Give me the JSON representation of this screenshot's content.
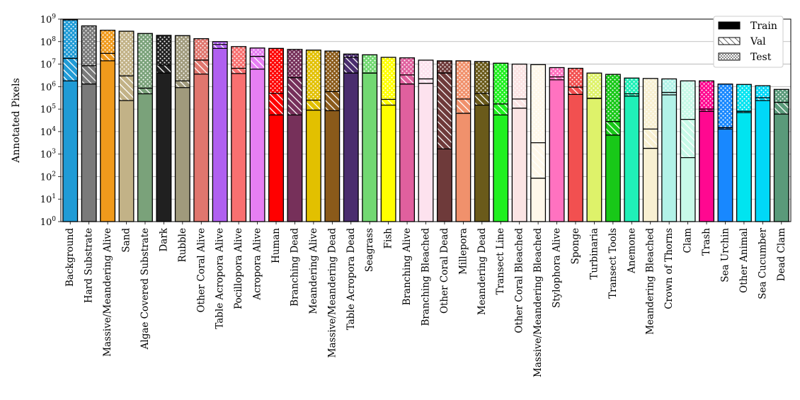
{
  "chart_data": {
    "type": "bar",
    "stacked": true,
    "yscale": "log",
    "ylabel": "Annotated Pixels",
    "xlabel": "",
    "title": "",
    "ylim": [
      1,
      1000000000
    ],
    "grid": "y",
    "legend": {
      "location": "top-right",
      "entries": [
        {
          "label": "Train",
          "style": "solid"
        },
        {
          "label": "Val",
          "style": "hatched"
        },
        {
          "label": "Test",
          "style": "dotted"
        }
      ]
    },
    "y_ticks": [
      {
        "base": "10",
        "exp": "0"
      },
      {
        "base": "10",
        "exp": "1"
      },
      {
        "base": "10",
        "exp": "2"
      },
      {
        "base": "10",
        "exp": "3"
      },
      {
        "base": "10",
        "exp": "4"
      },
      {
        "base": "10",
        "exp": "5"
      },
      {
        "base": "10",
        "exp": "6"
      },
      {
        "base": "10",
        "exp": "7"
      },
      {
        "base": "10",
        "exp": "8"
      },
      {
        "base": "10",
        "exp": "9"
      }
    ],
    "categories": [
      "Background",
      "Hard Substrate",
      "Massive/Meandering Alive",
      "Sand",
      "Algae Covered Substrate",
      "Dark",
      "Rubble",
      "Other Coral Alive",
      "Table Acropora Alive",
      "Pocillopora Alive",
      "Acropora Alive",
      "Human",
      "Branching Dead",
      "Meandering Alive",
      "Massive/Meandering Dead",
      "Table Acropora Dead",
      "Seagrass",
      "Fish",
      "Branching Alive",
      "Branching Bleached",
      "Other Coral Dead",
      "Millepora",
      "Meandering Dead",
      "Transect Line",
      "Other Coral Bleached",
      "Massive/Meandering Bleached",
      "Stylophora Alive",
      "Sponge",
      "Turbinaria",
      "Transect Tools",
      "Anemone",
      "Meandering Bleached",
      "Crown of Thorns",
      "Clam",
      "Trash",
      "Sea Urchin",
      "Other Animal",
      "Sea Cucumber",
      "Dead Clam"
    ],
    "colors": [
      "#1f9bd6",
      "#7a7a7a",
      "#f09a1c",
      "#c2b287",
      "#7aa27a",
      "#202020",
      "#a09a7c",
      "#e0766e",
      "#b060f0",
      "#f87070",
      "#e67ff2",
      "#ff0000",
      "#76305a",
      "#e2c000",
      "#8a5a1a",
      "#4a2d6e",
      "#72d872",
      "#ffff00",
      "#e0609e",
      "#fde2ee",
      "#6e3a3a",
      "#f0916c",
      "#6a5a1a",
      "#20f020",
      "#fbe4e4",
      "#fff8ea",
      "#ff72c0",
      "#f25050",
      "#def26a",
      "#18c818",
      "#20f0b8",
      "#f8f0d2",
      "#b2f2e8",
      "#c8fae8",
      "#ff0890",
      "#1888ff",
      "#00e4f0",
      "#00d8f8",
      "#5a9a7a"
    ],
    "series": [
      {
        "name": "Train",
        "values": [
          1800000,
          1300000,
          14000000,
          240000,
          480000,
          4000000,
          900000,
          3600000,
          50000000,
          3800000,
          6000000,
          55000,
          55000,
          90000,
          85000,
          4000000,
          4000000,
          150000,
          1300000,
          1400000,
          1700,
          65000,
          150000,
          55000,
          110000,
          85,
          2000000,
          450000,
          300000,
          7000,
          380000,
          1800,
          430000,
          700,
          80000,
          13000,
          70000,
          240000,
          60000
        ]
      },
      {
        "name": "Val",
        "values": [
          18000000,
          8500000,
          30000000,
          3000000,
          850000,
          9000000,
          1800000,
          15000000,
          75000000,
          6500000,
          22000000,
          500000,
          2500000,
          250000,
          600000,
          20000000,
          4000000,
          270000,
          3300000,
          2200000,
          4000000,
          280000,
          500000,
          170000,
          280000,
          3200,
          2700000,
          950000,
          300000,
          28000,
          480000,
          13000,
          550000,
          35000,
          100000,
          15000,
          80000,
          320000,
          200000
        ]
      },
      {
        "name": "Test",
        "values": [
          920000000,
          500000000,
          320000000,
          290000000,
          230000000,
          190000000,
          185000000,
          135000000,
          100000000,
          60000000,
          52000000,
          50000000,
          45000000,
          42000000,
          38000000,
          28000000,
          26000000,
          20000000,
          19000000,
          15000000,
          14000000,
          14000000,
          13000000,
          11000000,
          10000000,
          9500000,
          7000000,
          6500000,
          4000000,
          3500000,
          2400000,
          2300000,
          2200000,
          1800000,
          1800000,
          1300000,
          1250000,
          1100000,
          750000
        ]
      }
    ]
  }
}
